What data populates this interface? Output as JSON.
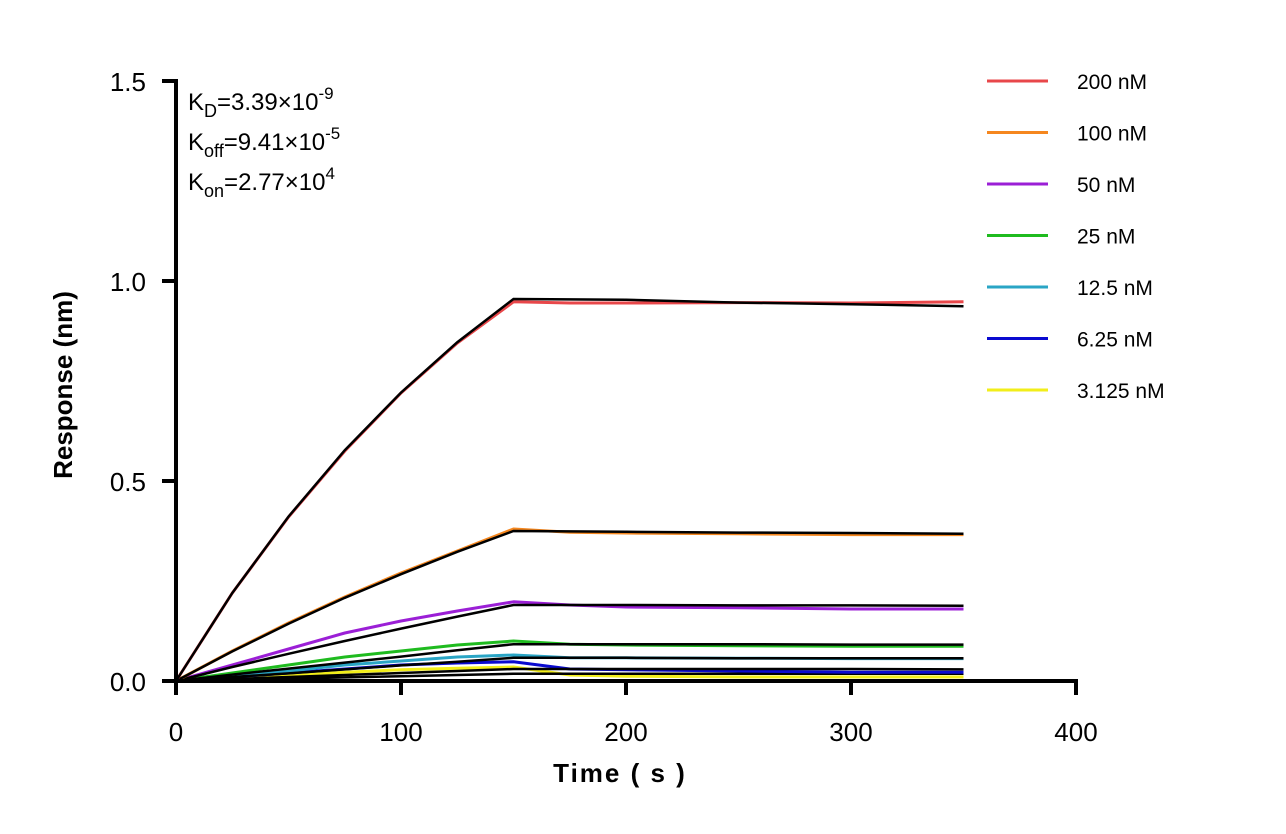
{
  "chart_data": {
    "type": "line",
    "xlabel": "Time ( s )",
    "ylabel": "Response (nm)",
    "xlim": [
      0,
      400
    ],
    "ylim": [
      0,
      1.5
    ],
    "xticks": [
      "0",
      "100",
      "200",
      "300",
      "400"
    ],
    "yticks": [
      "0.0",
      "0.5",
      "1.0",
      "1.5"
    ],
    "xtick_values": [
      0,
      100,
      200,
      300,
      400
    ],
    "ytick_values": [
      0,
      0.5,
      1.0,
      1.5
    ],
    "grid": false,
    "legend_position": "top-right",
    "annotations": [
      {
        "base": "K",
        "sub": "D",
        "value": "=3.39×10",
        "exp": "-9"
      },
      {
        "base": "K",
        "sub": "off",
        "value": "=9.41×10",
        "exp": "-5"
      },
      {
        "base": "K",
        "sub": "on",
        "value": "=2.77×10",
        "exp": "4"
      }
    ],
    "x": [
      0,
      25,
      50,
      75,
      100,
      125,
      150,
      175,
      200,
      250,
      300,
      350
    ],
    "series": [
      {
        "name": "200 nM",
        "color": "#e8474a",
        "values": [
          0,
          0.22,
          0.41,
          0.575,
          0.72,
          0.845,
          0.948,
          0.945,
          0.945,
          0.946,
          0.945,
          0.948
        ]
      },
      {
        "name": "100 nM",
        "color": "#f5871f",
        "values": [
          0,
          0.075,
          0.145,
          0.21,
          0.27,
          0.325,
          0.38,
          0.372,
          0.37,
          0.368,
          0.366,
          0.366
        ]
      },
      {
        "name": "50 nM",
        "color": "#9b1fd6",
        "values": [
          0,
          0.04,
          0.08,
          0.12,
          0.15,
          0.175,
          0.198,
          0.19,
          0.185,
          0.183,
          0.18,
          0.18
        ]
      },
      {
        "name": "25 nM",
        "color": "#1fbb1f",
        "values": [
          0,
          0.02,
          0.04,
          0.06,
          0.075,
          0.09,
          0.1,
          0.092,
          0.09,
          0.088,
          0.087,
          0.087
        ]
      },
      {
        "name": "12.5 nM",
        "color": "#2aa5c5",
        "values": [
          0,
          0.012,
          0.025,
          0.04,
          0.05,
          0.06,
          0.065,
          0.058,
          0.058,
          0.057,
          0.056,
          0.056
        ]
      },
      {
        "name": "6.25 nM",
        "color": "#0a0ad0",
        "values": [
          0,
          0.01,
          0.02,
          0.03,
          0.04,
          0.045,
          0.048,
          0.03,
          0.028,
          0.025,
          0.022,
          0.022
        ]
      },
      {
        "name": "3.125 nM",
        "color": "#f2ee1a",
        "values": [
          0,
          0.008,
          0.015,
          0.022,
          0.028,
          0.032,
          0.035,
          0.015,
          0.012,
          0.01,
          0.01,
          0.01
        ]
      }
    ],
    "fits": {
      "color": "#000000",
      "series": [
        [
          0,
          0.22,
          0.411,
          0.577,
          0.721,
          0.847,
          0.955,
          0.954,
          0.953,
          0.946,
          0.942,
          0.937
        ],
        [
          0,
          0.074,
          0.143,
          0.208,
          0.267,
          0.323,
          0.375,
          0.374,
          0.373,
          0.371,
          0.37,
          0.368
        ],
        [
          0,
          0.035,
          0.068,
          0.1,
          0.131,
          0.161,
          0.19,
          0.19,
          0.19,
          0.189,
          0.189,
          0.188
        ],
        [
          0,
          0.016,
          0.031,
          0.046,
          0.061,
          0.077,
          0.092,
          0.092,
          0.092,
          0.092,
          0.091,
          0.091
        ],
        [
          0,
          0.01,
          0.019,
          0.029,
          0.039,
          0.048,
          0.058,
          0.058,
          0.058,
          0.057,
          0.057,
          0.057
        ],
        [
          0,
          0.005,
          0.01,
          0.015,
          0.02,
          0.025,
          0.03,
          0.03,
          0.03,
          0.03,
          0.03,
          0.029
        ],
        [
          0,
          0.003,
          0.006,
          0.009,
          0.012,
          0.015,
          0.018,
          0.018,
          0.018,
          0.018,
          0.018,
          0.018
        ]
      ]
    }
  }
}
